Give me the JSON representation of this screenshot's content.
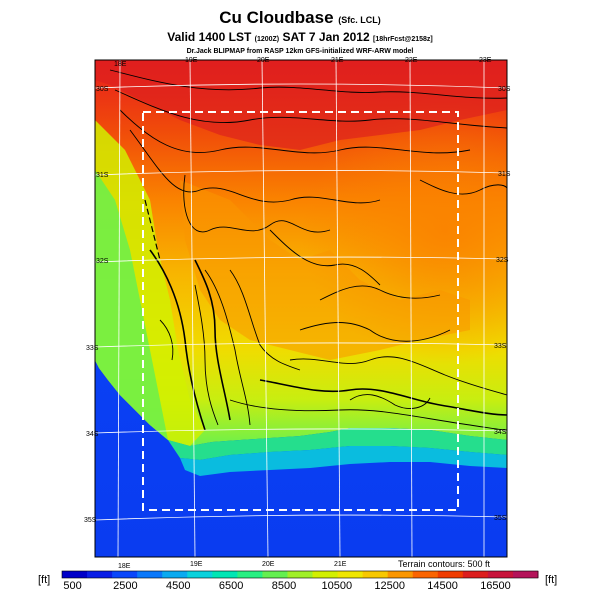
{
  "title": {
    "main": "Cu Cloudbase",
    "main_suffix": "(Sfc. LCL)",
    "valid_prefix": "Valid 1400 LST",
    "valid_utc": "(1200Z)",
    "valid_date": "SAT 7 Jan 2012",
    "valid_suffix": "[18hrFcst@2158z]",
    "source": "Dr.Jack BLIPMAP from RASP 12km GFS-initialized WRF-ARW model"
  },
  "map": {
    "lon_labels_top": [
      "18E",
      "19E",
      "20E",
      "21E",
      "22E",
      "23E"
    ],
    "lon_labels_bottom": [
      "18E",
      "19E",
      "20E",
      "21E"
    ],
    "lat_labels_left": [
      "30S",
      "31S",
      "32S",
      "33S",
      "34S",
      "35S"
    ],
    "lat_labels_right": [
      "30S",
      "31S",
      "32S",
      "33S",
      "34S",
      "35S"
    ],
    "terrain_note": "Terrain contours: 500 ft"
  },
  "colorbar": {
    "unit_left": "[ft]",
    "unit_right": "[ft]",
    "tick_labels": [
      "500",
      "2500",
      "4500",
      "6500",
      "8500",
      "10500",
      "12500",
      "14500",
      "16500"
    ],
    "colors": [
      "#0000c8",
      "#0a1ee6",
      "#0a46fa",
      "#0a78fa",
      "#0aaaf0",
      "#0ad2dc",
      "#00e6b4",
      "#28f082",
      "#64f050",
      "#a0f028",
      "#d2f000",
      "#f0e600",
      "#f8c800",
      "#fa9600",
      "#fa6400",
      "#f03c00",
      "#dc1e1e",
      "#c8143c",
      "#b4145a"
    ]
  }
}
